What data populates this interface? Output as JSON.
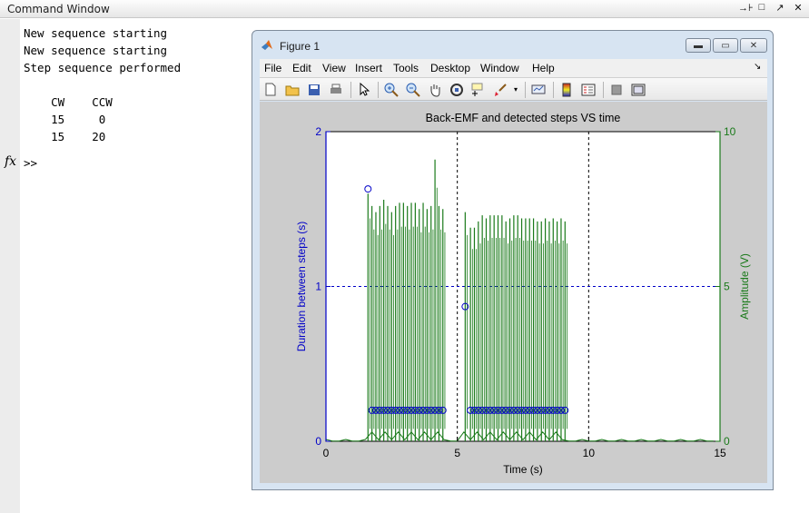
{
  "command_window": {
    "title": "Command Window",
    "controls": [
      "→⊦",
      "□",
      "↗",
      "✕"
    ],
    "lines": [
      "New sequence starting",
      "New sequence starting",
      "Step sequence performed"
    ],
    "table_header": "    CW    CCW",
    "table_rows": [
      "    15     0",
      "    15    20"
    ],
    "fx_label": "fx",
    "prompt": ">>"
  },
  "figure": {
    "title": "Figure 1",
    "menu": [
      "File",
      "Edit",
      "View",
      "Insert",
      "Tools",
      "Desktop",
      "Window",
      "Help"
    ],
    "menu_arrow": "↘",
    "toolbar_icons": [
      "new-file-icon",
      "open-folder-icon",
      "save-icon",
      "print-icon",
      "pointer-icon",
      "zoom-in-icon",
      "zoom-out-icon",
      "pan-hand-icon",
      "rotate-3d-icon",
      "data-cursor-icon",
      "brush-icon",
      "link-plot-icon",
      "colorbar-icon",
      "legend-icon",
      "hide-tools-icon",
      "show-tools-icon"
    ],
    "accent_color": "#0f5fc0"
  },
  "chart_data": {
    "type": "line",
    "title": "Back-EMF and detected steps VS time",
    "xlabel": "Time (s)",
    "ylabel_left": "Duration between steps (s)",
    "ylabel_right": "Amplitude (V)",
    "xlim": [
      0,
      15
    ],
    "ylim_left": [
      0,
      2
    ],
    "ylim_right": [
      0,
      10
    ],
    "x_ticks": [
      0,
      5,
      10,
      15
    ],
    "y_left_ticks": [
      0,
      1,
      2
    ],
    "y_right_ticks": [
      0,
      5,
      10
    ],
    "left_color": "#0000c8",
    "right_color": "#1a7a1a",
    "vertical_dashed_lines_x": [
      5,
      10
    ],
    "horizontal_dashed_line_y_left": 1,
    "series": [
      {
        "name": "",
        "axis": "left",
        "marker": "circle",
        "x": [
          1.6,
          1.75,
          1.9,
          2.05,
          2.2,
          2.35,
          2.5,
          2.65,
          2.8,
          2.95,
          3.1,
          3.25,
          3.4,
          3.55,
          3.7,
          3.85,
          4.0,
          4.15,
          4.3,
          4.45,
          5.3,
          5.5,
          5.65,
          5.8,
          5.95,
          6.1,
          6.25,
          6.4,
          6.55,
          6.7,
          6.85,
          7.0,
          7.15,
          7.3,
          7.45,
          7.6,
          7.75,
          7.9,
          8.05,
          8.2,
          8.35,
          8.5,
          8.65,
          8.8,
          8.95,
          9.1
        ],
        "y": [
          1.63,
          0.2,
          0.2,
          0.2,
          0.2,
          0.2,
          0.2,
          0.2,
          0.2,
          0.2,
          0.2,
          0.2,
          0.2,
          0.2,
          0.2,
          0.2,
          0.2,
          0.2,
          0.2,
          0.2,
          0.87,
          0.2,
          0.2,
          0.2,
          0.2,
          0.2,
          0.2,
          0.2,
          0.2,
          0.2,
          0.2,
          0.2,
          0.2,
          0.2,
          0.2,
          0.2,
          0.2,
          0.2,
          0.2,
          0.2,
          0.2,
          0.2,
          0.2,
          0.2,
          0.2,
          0.2
        ]
      },
      {
        "name": "",
        "axis": "right",
        "type": "spikes",
        "x": [
          1.6,
          1.75,
          1.9,
          2.05,
          2.2,
          2.35,
          2.5,
          2.65,
          2.8,
          2.95,
          3.1,
          3.25,
          3.4,
          3.55,
          3.7,
          3.85,
          4.0,
          4.15,
          4.3,
          4.45,
          5.3,
          5.5,
          5.65,
          5.8,
          5.95,
          6.1,
          6.25,
          6.4,
          6.55,
          6.7,
          6.85,
          7.0,
          7.15,
          7.3,
          7.45,
          7.6,
          7.75,
          7.9,
          8.05,
          8.2,
          8.35,
          8.5,
          8.65,
          8.8,
          8.95,
          9.1
        ],
        "y": [
          8.0,
          7.6,
          7.4,
          7.6,
          7.8,
          7.6,
          7.4,
          7.6,
          7.7,
          7.7,
          7.6,
          7.7,
          7.7,
          7.5,
          7.7,
          7.5,
          7.6,
          9.1,
          7.6,
          7.5,
          7.4,
          6.9,
          6.9,
          7.1,
          7.3,
          7.2,
          7.3,
          7.3,
          7.3,
          7.3,
          7.1,
          7.2,
          7.3,
          7.3,
          7.2,
          7.2,
          7.2,
          7.2,
          7.1,
          7.1,
          7.2,
          7.1,
          7.2,
          7.1,
          7.2,
          7.1
        ]
      }
    ]
  }
}
